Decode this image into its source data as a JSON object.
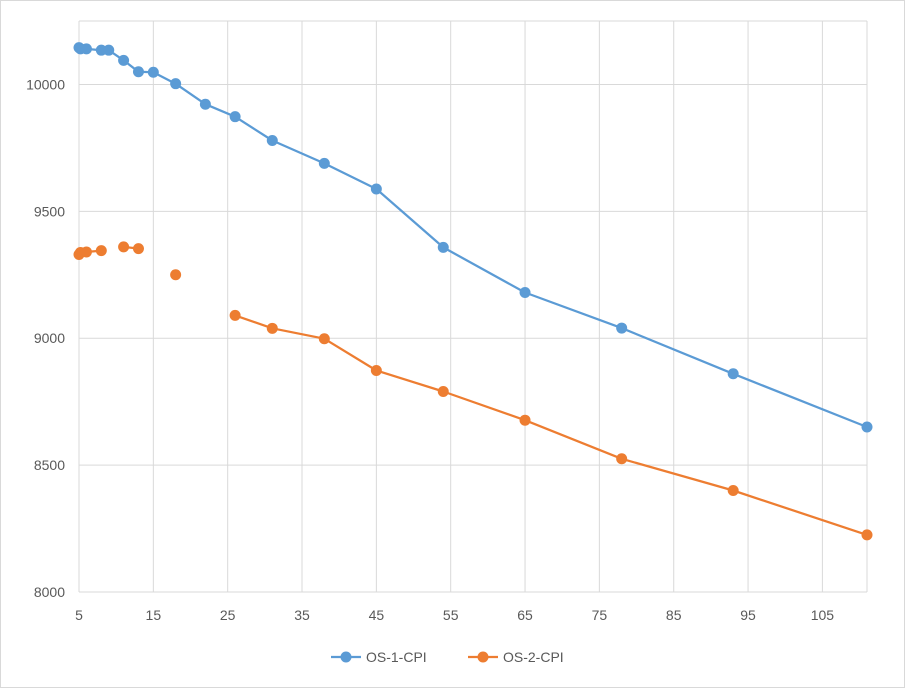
{
  "chart_data": {
    "type": "line",
    "title": "",
    "xlabel": "",
    "ylabel": "",
    "xlim": [
      5,
      111
    ],
    "ylim": [
      8000,
      10250
    ],
    "xticks": [
      5,
      15,
      25,
      35,
      45,
      55,
      65,
      75,
      85,
      95,
      105
    ],
    "yticks": [
      8000,
      8500,
      9000,
      9500,
      10000
    ],
    "grid": true,
    "legend_position": "bottom",
    "series": [
      {
        "name": "OS-1-CPI",
        "color": "#5b9bd5",
        "points": [
          [
            5,
            10145
          ],
          [
            5.2,
            10140
          ],
          [
            6,
            10140
          ],
          [
            8,
            10135
          ],
          [
            9,
            10135
          ],
          [
            11,
            10095
          ],
          [
            13,
            10050
          ],
          [
            15,
            10048
          ],
          [
            18,
            10003
          ],
          [
            22,
            9922
          ],
          [
            26,
            9873
          ],
          [
            31,
            9779
          ],
          [
            38,
            9689
          ],
          [
            45,
            9588
          ],
          [
            54,
            9358
          ],
          [
            65,
            9180
          ],
          [
            78,
            9040
          ],
          [
            93,
            8860
          ],
          [
            111,
            8650
          ]
        ],
        "segments": [
          [
            0,
            18
          ]
        ]
      },
      {
        "name": "OS-2-CPI",
        "color": "#ed7d31",
        "points": [
          [
            5,
            9330
          ],
          [
            5.2,
            9338
          ],
          [
            6,
            9340
          ],
          [
            8,
            9345
          ],
          [
            11,
            9360
          ],
          [
            13,
            9353
          ],
          [
            18,
            9250
          ],
          [
            26,
            9090
          ],
          [
            31,
            9039
          ],
          [
            38,
            8998
          ],
          [
            45,
            8873
          ],
          [
            54,
            8790
          ],
          [
            65,
            8677
          ],
          [
            78,
            8525
          ],
          [
            93,
            8400
          ],
          [
            111,
            8225
          ]
        ],
        "segments": [
          [
            0,
            3
          ],
          [
            4,
            5
          ],
          [
            7,
            15
          ]
        ]
      }
    ]
  }
}
